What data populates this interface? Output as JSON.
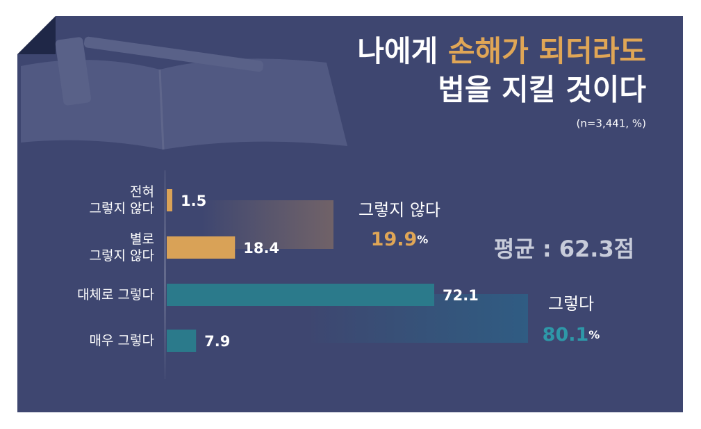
{
  "title_parts": [
    "나에게 ",
    "손해가 되더라도"
  ],
  "title_line2": "법을 지킬 것이다",
  "subtitle": "(n=3,441, %)",
  "average": "평균 : 62.3점",
  "chart_data": {
    "type": "bar",
    "orientation": "horizontal",
    "categories": [
      "전혀\n그렇지 않다",
      "별로\n그렇지 않다",
      "대체로 그렇다",
      "매우 그렇다"
    ],
    "values": [
      1.5,
      18.4,
      72.1,
      7.9
    ],
    "colors": [
      "#d9a257",
      "#d9a257",
      "#2b7a8b",
      "#2b7a8b"
    ],
    "groups": [
      {
        "name": "그렇지 않다",
        "value": 19.9,
        "unit": "%",
        "color": "#e0a656"
      },
      {
        "name": "그렇다",
        "value": 80.1,
        "unit": "%",
        "color": "#2e98a8"
      }
    ]
  }
}
